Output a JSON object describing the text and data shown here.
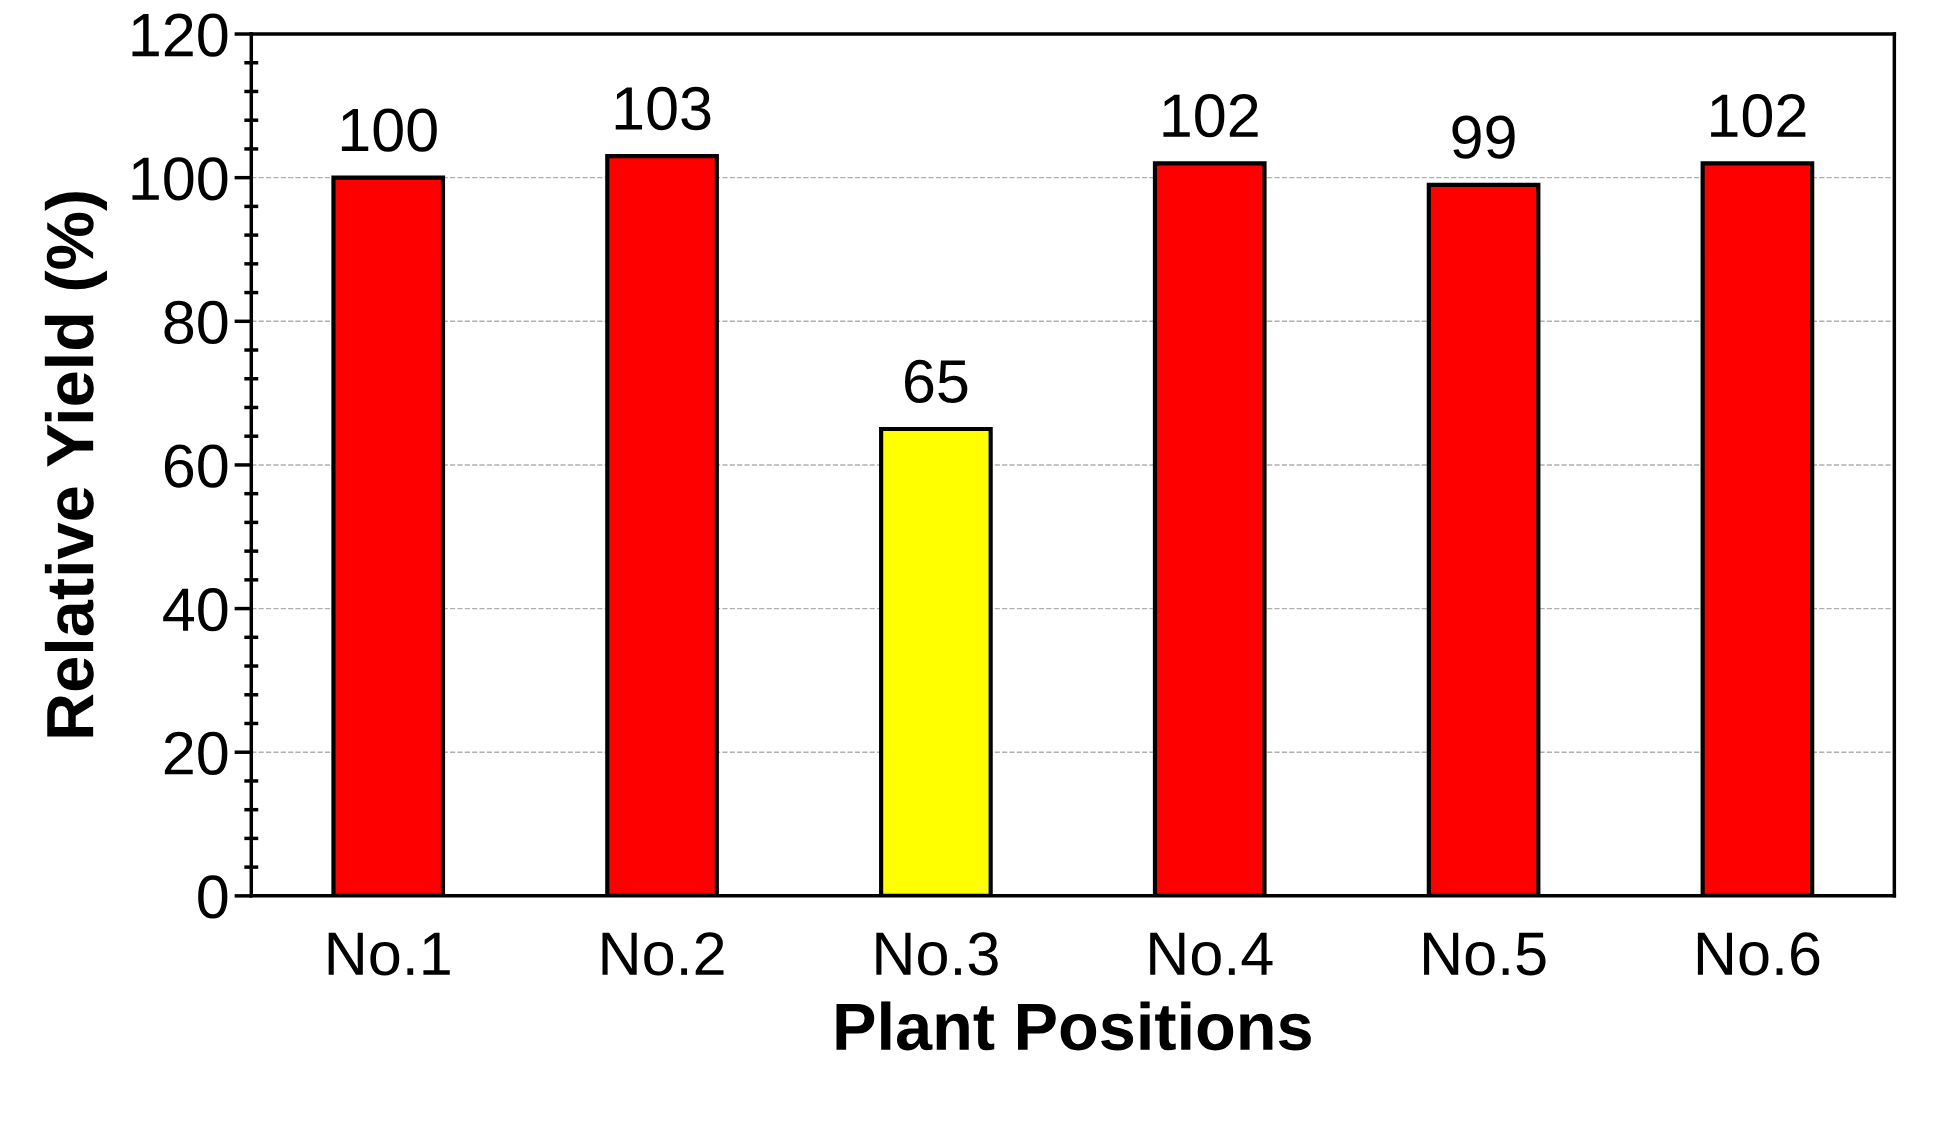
{
  "chart_data": {
    "type": "bar",
    "xlabel": "Plant Positions",
    "ylabel": "Relative Yield (%)",
    "categories": [
      "No.1",
      "No.2",
      "No.3",
      "No.4",
      "No.5",
      "No.6"
    ],
    "values": [
      100,
      103,
      65,
      102,
      99,
      102
    ],
    "colors": [
      "#ff0000",
      "#ff0000",
      "#ffff00",
      "#ff0000",
      "#ff0000",
      "#ff0000"
    ],
    "ylim": [
      0,
      120
    ],
    "yticks": [
      0,
      {
        "value": 4,
        "label": null
      },
      {
        "value": 8,
        "label": null
      },
      {
        "value": 12,
        "label": null
      },
      {
        "value": 16,
        "label": null
      },
      20,
      {
        "value": 24,
        "label": null
      },
      {
        "value": 28,
        "label": null
      },
      {
        "value": 32,
        "label": null
      },
      {
        "value": 36,
        "label": null
      },
      40,
      {
        "value": 44,
        "label": null
      },
      {
        "value": 48,
        "label": null
      },
      {
        "value": 52,
        "label": null
      },
      {
        "value": 56,
        "label": null
      },
      60,
      {
        "value": 64,
        "label": null
      },
      {
        "value": 68,
        "label": null
      },
      {
        "value": 72,
        "label": null
      },
      {
        "value": 76,
        "label": null
      },
      80,
      {
        "value": 84,
        "label": null
      },
      {
        "value": 88,
        "label": null
      },
      {
        "value": 92,
        "label": null
      },
      {
        "value": 96,
        "label": null
      },
      100,
      {
        "value": 104,
        "label": null
      },
      {
        "value": 108,
        "label": null
      },
      {
        "value": 112,
        "label": null
      },
      {
        "value": 116,
        "label": null
      },
      120
    ],
    "grid": "y",
    "data_labels": true
  }
}
